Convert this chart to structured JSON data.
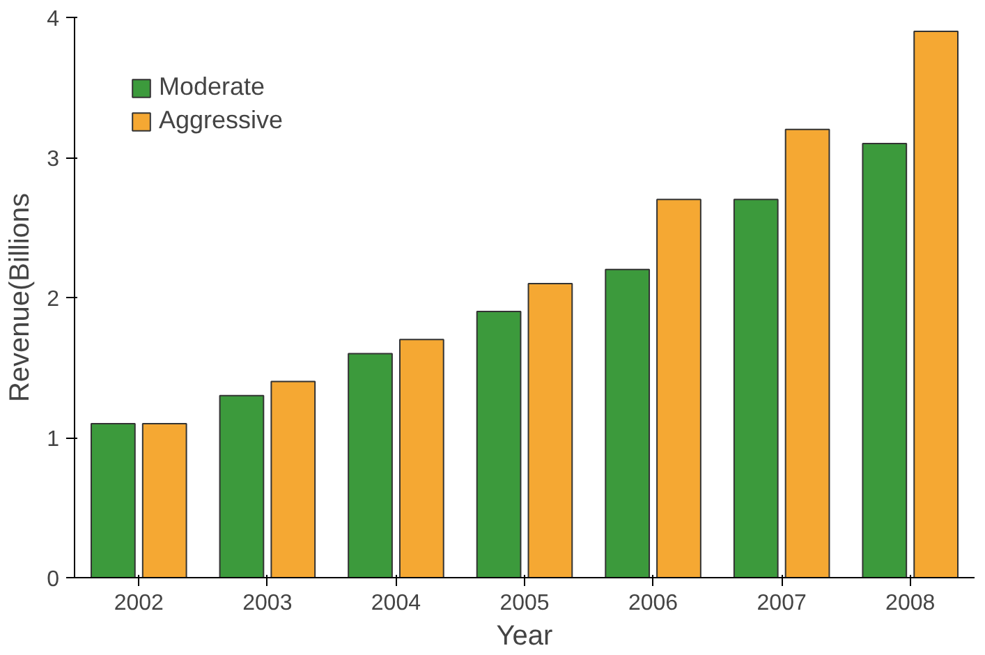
{
  "chart_data": {
    "type": "bar",
    "xlabel": "Year",
    "ylabel": "Revenue(Billions",
    "categories": [
      "2002",
      "2003",
      "2004",
      "2005",
      "2006",
      "2007",
      "2008"
    ],
    "series": [
      {
        "name": "Moderate",
        "color": "#3c9a3c",
        "values": [
          1.1,
          1.3,
          1.6,
          1.9,
          2.2,
          2.7,
          3.1
        ]
      },
      {
        "name": "Aggressive",
        "color": "#f5a833",
        "values": [
          1.1,
          1.4,
          1.7,
          2.1,
          2.7,
          3.2,
          3.9
        ]
      }
    ],
    "ylim": [
      0,
      4
    ],
    "yticks": [
      0,
      1,
      2,
      3,
      4
    ],
    "grid": false,
    "legend": "top left"
  }
}
